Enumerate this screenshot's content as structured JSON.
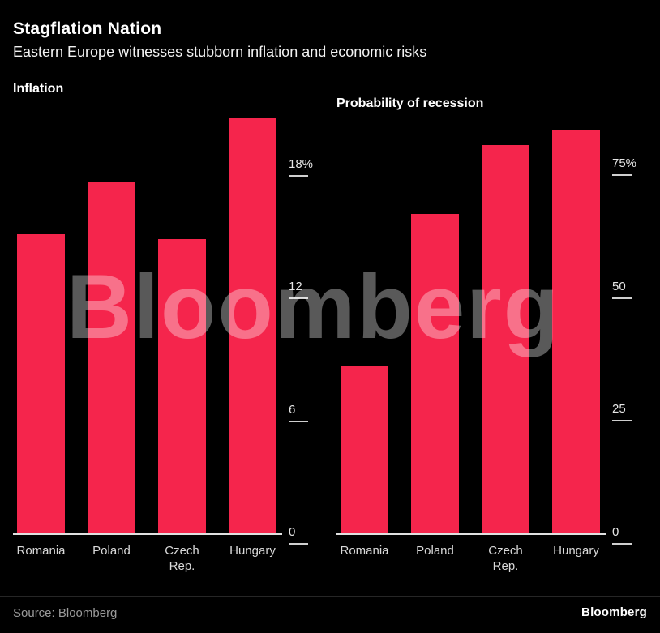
{
  "header": {
    "title": "Stagflation Nation",
    "subtitle": "Eastern Europe witnesses stubborn inflation and economic risks"
  },
  "watermark": "Bloomberg",
  "footer": {
    "source": "Source: Bloomberg",
    "logo": "Bloomberg"
  },
  "colors": {
    "background": "#000000",
    "bar": "#f5254c",
    "axis": "#e0e0e0",
    "text": "#ffffff"
  },
  "chart_data": [
    {
      "type": "bar",
      "title": "Inflation",
      "categories": [
        "Romania",
        "Poland",
        "Czech\nRep.",
        "Hungary"
      ],
      "values": [
        14.6,
        17.2,
        14.4,
        20.3
      ],
      "unit": "%",
      "ylim": [
        0,
        20.6
      ],
      "ticks": [
        {
          "label": "18%",
          "value": 18
        },
        {
          "label": "12",
          "value": 12
        },
        {
          "label": "6",
          "value": 6
        },
        {
          "label": "0",
          "value": 0
        }
      ],
      "grid": false,
      "legend": "none"
    },
    {
      "type": "bar",
      "title": "Probability of recession",
      "categories": [
        "Romania",
        "Poland",
        "Czech\nRep.",
        "Hungary"
      ],
      "values": [
        34,
        65,
        79,
        82
      ],
      "unit": "%",
      "ylim": [
        0,
        85.7
      ],
      "ticks": [
        {
          "label": "75%",
          "value": 75
        },
        {
          "label": "50",
          "value": 50
        },
        {
          "label": "25",
          "value": 25
        },
        {
          "label": "0",
          "value": 0
        }
      ],
      "grid": false,
      "legend": "none"
    }
  ]
}
